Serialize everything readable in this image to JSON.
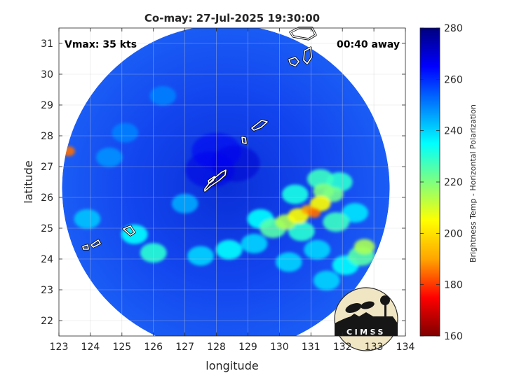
{
  "chart_data": {
    "type": "heatmap",
    "title": "Co-may: 27-Jul-2025 19:30:00",
    "xlabel": "longitude",
    "ylabel": "latitude",
    "xlim": [
      123,
      134
    ],
    "ylim": [
      21.5,
      31.5
    ],
    "x_ticks": [
      "123",
      "124",
      "125",
      "126",
      "127",
      "128",
      "129",
      "130",
      "131",
      "132",
      "133",
      "134"
    ],
    "y_ticks": [
      "22",
      "23",
      "24",
      "25",
      "26",
      "27",
      "28",
      "29",
      "30",
      "31"
    ],
    "grid": true,
    "annotations": {
      "vmax": "Vmax: 35 kts",
      "away": "00:40 away"
    },
    "colorbar": {
      "label": "Brightness Temp - Horizontal Polarization",
      "min": 160,
      "max": 280,
      "ticks": [
        "160",
        "180",
        "200",
        "220",
        "240",
        "260",
        "280"
      ],
      "colors": [
        "#7f0000",
        "#ff0000",
        "#ffa500",
        "#ffff00",
        "#7fff7f",
        "#00ffff",
        "#0080ff",
        "#0000ff",
        "#00007f"
      ]
    },
    "swath": {
      "center": [
        128.3,
        26.3
      ],
      "radius_deg": 5.2
    },
    "background_tb": 262,
    "features": [
      {
        "lon": 130.9,
        "lat": 25.6,
        "tb": 190
      },
      {
        "lon": 131.1,
        "lat": 25.5,
        "tb": 185
      },
      {
        "lon": 130.6,
        "lat": 25.4,
        "tb": 205
      },
      {
        "lon": 131.3,
        "lat": 25.8,
        "tb": 205
      },
      {
        "lon": 131.4,
        "lat": 26.2,
        "tb": 220
      },
      {
        "lon": 131.7,
        "lat": 26.1,
        "tb": 222
      },
      {
        "lon": 131.3,
        "lat": 26.6,
        "tb": 228
      },
      {
        "lon": 131.9,
        "lat": 26.5,
        "tb": 230
      },
      {
        "lon": 130.2,
        "lat": 25.2,
        "tb": 215
      },
      {
        "lon": 129.8,
        "lat": 25.0,
        "tb": 225
      },
      {
        "lon": 129.4,
        "lat": 25.3,
        "tb": 235
      },
      {
        "lon": 130.5,
        "lat": 26.1,
        "tb": 232
      },
      {
        "lon": 130.7,
        "lat": 24.9,
        "tb": 230
      },
      {
        "lon": 131.8,
        "lat": 25.2,
        "tb": 228
      },
      {
        "lon": 132.4,
        "lat": 25.5,
        "tb": 238
      },
      {
        "lon": 132.7,
        "lat": 24.4,
        "tb": 215
      },
      {
        "lon": 132.6,
        "lat": 24.1,
        "tb": 225
      },
      {
        "lon": 132.1,
        "lat": 23.8,
        "tb": 235
      },
      {
        "lon": 130.3,
        "lat": 23.9,
        "tb": 240
      },
      {
        "lon": 131.2,
        "lat": 24.3,
        "tb": 240
      },
      {
        "lon": 131.5,
        "lat": 23.3,
        "tb": 240
      },
      {
        "lon": 129.2,
        "lat": 24.5,
        "tb": 240
      },
      {
        "lon": 128.4,
        "lat": 24.3,
        "tb": 235
      },
      {
        "lon": 127.5,
        "lat": 24.1,
        "tb": 240
      },
      {
        "lon": 126.0,
        "lat": 24.2,
        "tb": 230
      },
      {
        "lon": 125.4,
        "lat": 24.8,
        "tb": 235
      },
      {
        "lon": 123.3,
        "lat": 27.5,
        "tb": 185
      },
      {
        "lon": 123.9,
        "lat": 25.3,
        "tb": 242
      },
      {
        "lon": 127.0,
        "lat": 25.8,
        "tb": 245
      },
      {
        "lon": 127.8,
        "lat": 26.9,
        "tb": 268
      },
      {
        "lon": 128.6,
        "lat": 27.1,
        "tb": 270
      },
      {
        "lon": 128.0,
        "lat": 27.5,
        "tb": 266
      },
      {
        "lon": 126.3,
        "lat": 29.3,
        "tb": 250
      },
      {
        "lon": 125.1,
        "lat": 28.1,
        "tb": 250
      },
      {
        "lon": 124.6,
        "lat": 27.3,
        "tb": 248
      }
    ],
    "logo_text": "CIMSS"
  }
}
